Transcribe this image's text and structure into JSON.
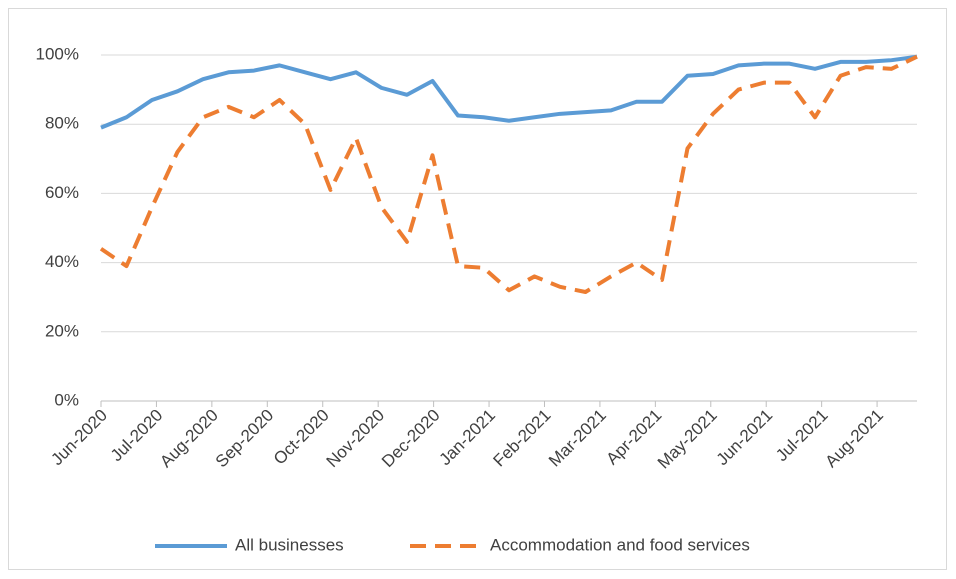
{
  "chart_data": {
    "type": "line",
    "x": [
      0,
      0.46,
      0.92,
      1.38,
      1.84,
      2.3,
      2.76,
      3.22,
      3.68,
      4.14,
      4.6,
      5.06,
      5.52,
      5.98,
      6.44,
      6.9,
      7.36,
      7.82,
      8.28,
      8.74,
      9.2,
      9.66,
      10.12,
      10.58,
      11.04,
      11.5,
      11.96,
      12.42,
      12.88,
      13.34,
      13.8,
      14.26,
      14.72
    ],
    "series": [
      {
        "name": "All businesses",
        "color": "#5b9bd5",
        "dashed": false,
        "values": [
          79,
          82,
          87,
          89.5,
          93,
          95,
          95.5,
          97,
          95,
          93,
          95,
          90.5,
          88.5,
          92.5,
          82.5,
          82,
          81,
          82,
          83,
          83.5,
          84,
          86.5,
          86.5,
          94,
          94.5,
          97,
          97.5,
          97.5,
          96,
          98,
          98,
          98.5,
          99.5
        ]
      },
      {
        "name": "Accommodation and food services",
        "color": "#ed7d31",
        "dashed": true,
        "values": [
          44,
          39,
          56,
          72,
          82,
          85,
          82,
          87,
          80,
          61,
          76,
          56,
          46,
          71,
          39,
          38.5,
          32,
          36,
          33,
          31.5,
          36,
          40,
          35,
          73,
          83,
          90,
          92,
          92,
          82,
          94,
          96.5,
          96,
          99.5
        ]
      }
    ],
    "xlim": [
      0,
      14.72
    ],
    "xticks": [
      {
        "value": 0,
        "label": "Jun-2020"
      },
      {
        "value": 1,
        "label": "Jul-2020"
      },
      {
        "value": 2,
        "label": "Aug-2020"
      },
      {
        "value": 3,
        "label": "Sep-2020"
      },
      {
        "value": 4,
        "label": "Oct-2020"
      },
      {
        "value": 5,
        "label": "Nov-2020"
      },
      {
        "value": 6,
        "label": "Dec-2020"
      },
      {
        "value": 7,
        "label": "Jan-2021"
      },
      {
        "value": 8,
        "label": "Feb-2021"
      },
      {
        "value": 9,
        "label": "Mar-2021"
      },
      {
        "value": 10,
        "label": "Apr-2021"
      },
      {
        "value": 11,
        "label": "May-2021"
      },
      {
        "value": 12,
        "label": "Jun-2021"
      },
      {
        "value": 13,
        "label": "Jul-2021"
      },
      {
        "value": 14,
        "label": "Aug-2021"
      }
    ],
    "ylim": [
      0,
      100
    ],
    "yticks": [
      {
        "value": 0,
        "label": "0%"
      },
      {
        "value": 20,
        "label": "20%"
      },
      {
        "value": 40,
        "label": "40%"
      },
      {
        "value": 60,
        "label": "60%"
      },
      {
        "value": 80,
        "label": "80%"
      },
      {
        "value": 100,
        "label": "100%"
      }
    ],
    "grid": true,
    "legend": "bottom"
  }
}
